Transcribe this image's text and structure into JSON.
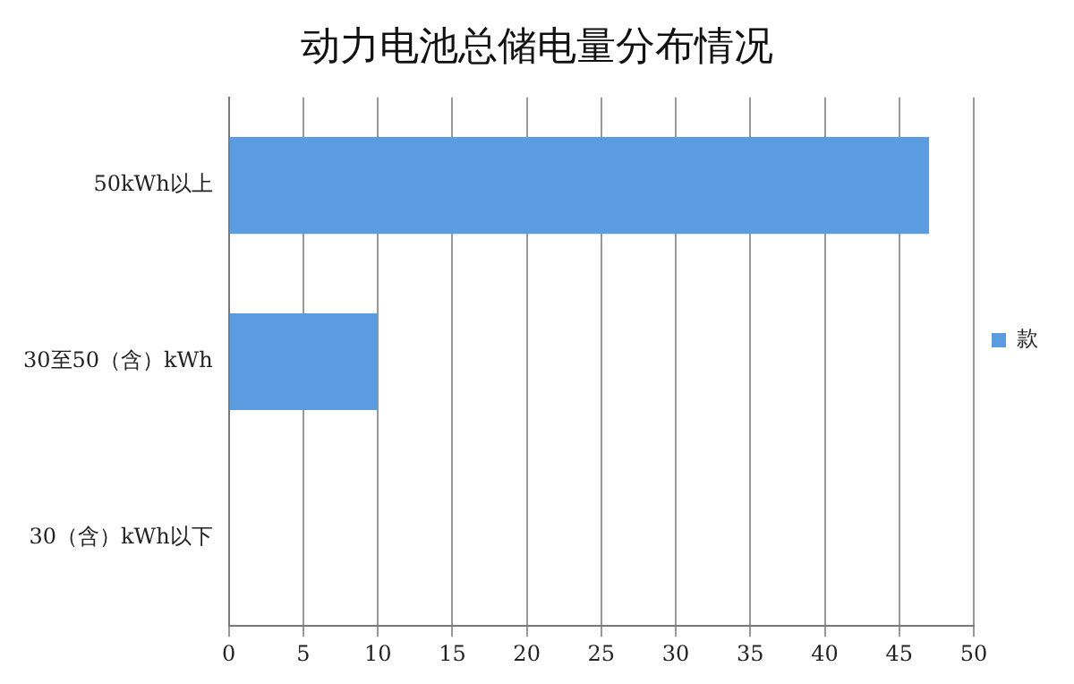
{
  "chart_data": {
    "type": "bar",
    "orientation": "horizontal",
    "title": "动力电池总储电量分布情况",
    "categories": [
      "50kWh以上",
      "30至50（含）kWh",
      "30（含）kWh以下"
    ],
    "series": [
      {
        "name": "款",
        "color": "#5b9be0",
        "values": [
          47,
          10,
          0
        ]
      }
    ],
    "xlim": [
      0,
      50
    ],
    "xticks": [
      0,
      5,
      10,
      15,
      20,
      25,
      30,
      35,
      40,
      45,
      50
    ],
    "grid": "x",
    "legend": "right"
  }
}
